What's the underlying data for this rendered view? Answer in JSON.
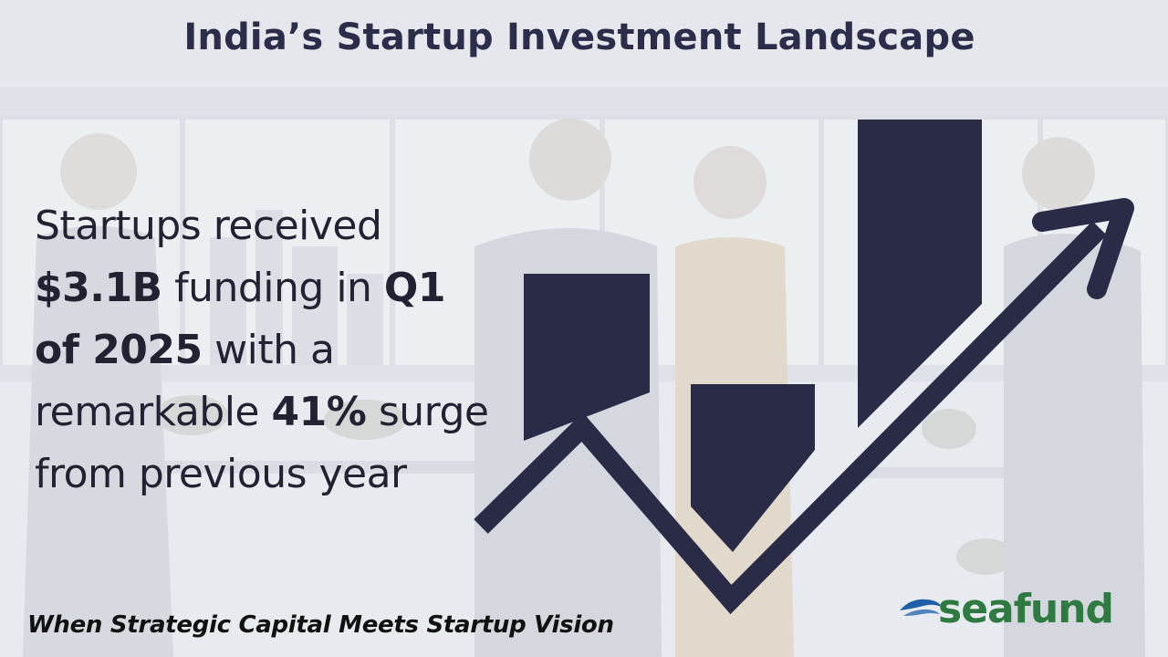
{
  "header": {
    "title": "India’s Startup Investment Landscape"
  },
  "stat": {
    "line1": "Startups received",
    "amount": "$3.1B",
    "funding_in": " funding in ",
    "quarter": "Q1",
    "year": "of 2025",
    "with_a": " with a",
    "remarkable": "remarkable ",
    "percent": "41%",
    "surge": " surge",
    "tail": "from previous year"
  },
  "footer": {
    "tagline": "When Strategic Capital Meets Startup Vision",
    "brand": "seafund"
  },
  "colors": {
    "background": "#e6e8ed",
    "graphic_navy": "#2a2c47",
    "brand_green": "#2e7a40",
    "brand_blue": "#1f5fa8"
  },
  "icons": {
    "trend_graphic": "bars-with-rising-arrow",
    "logo_mark": "wave-icon"
  }
}
